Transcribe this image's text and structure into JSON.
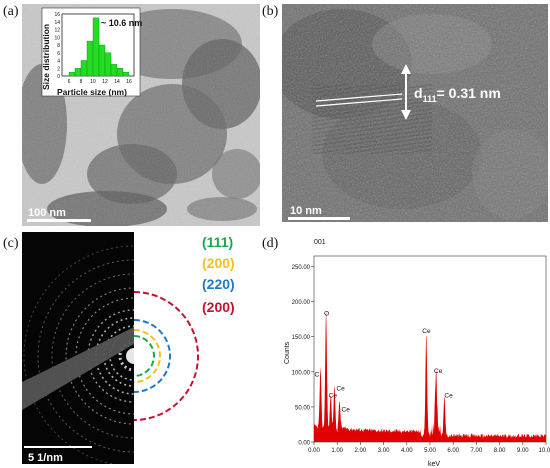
{
  "panels": {
    "a": {
      "label": "(a)",
      "scale_bar": "100 nm",
      "inset": {
        "annotation": "~ 10.6 nm",
        "ylabel": "Size distribution",
        "xlabel": "Particle size (nm)",
        "yticks": [
          "0",
          "2",
          "4",
          "6",
          "8",
          "10",
          "12",
          "14",
          "16"
        ],
        "xticks": [
          "6",
          "8",
          "10",
          "12",
          "14",
          "16"
        ],
        "bar_color": "#22dd22"
      }
    },
    "b": {
      "label": "(b)",
      "scale_bar": "10 nm",
      "d_symbol": "d",
      "d_sub": "111",
      "d_value": "= 0.31 nm"
    },
    "c": {
      "label": "(c)",
      "scale_bar": "5 1/nm",
      "rings": [
        {
          "text": "(111)",
          "color": "#19a84a"
        },
        {
          "text": "(200)",
          "color": "#f2c21b"
        },
        {
          "text": "(220)",
          "color": "#1f78c8"
        },
        {
          "text": "(200)",
          "color": "#c8102e"
        }
      ]
    },
    "d": {
      "label": "(d)",
      "header": "001",
      "fill_color": "#e00000"
    }
  },
  "chart_data": [
    {
      "type": "bar",
      "categories": [
        "6",
        "7",
        "8",
        "9",
        "10",
        "11",
        "12",
        "13",
        "14",
        "15"
      ],
      "values": [
        1,
        2,
        4,
        9,
        15,
        8,
        6,
        3,
        2,
        1
      ],
      "title": "",
      "xlabel": "Particle size (nm)",
      "ylabel": "Size distribution",
      "ylim": [
        0,
        16
      ],
      "annotation": "~ 10.6 nm"
    },
    {
      "type": "area",
      "xlabel": "keV",
      "ylabel": "Counts",
      "xlim": [
        0,
        10
      ],
      "ylim": [
        0,
        265
      ],
      "xticks": [
        "0.00",
        "1.00",
        "2.00",
        "3.00",
        "4.00",
        "5.00",
        "6.00",
        "7.00",
        "8.00",
        "9.00",
        "10.00"
      ],
      "yticks": [
        "0.00",
        "50.00",
        "100.00",
        "150.00",
        "200.00",
        "250.00"
      ],
      "peaks": [
        {
          "label": "C",
          "x": 0.28,
          "y": 85
        },
        {
          "label": "O",
          "x": 0.52,
          "y": 172
        },
        {
          "label": "Ce",
          "x": 0.88,
          "y": 65
        },
        {
          "label": "Ce",
          "x": 0.72,
          "y": 52
        },
        {
          "label": "Ce",
          "x": 1.1,
          "y": 38
        },
        {
          "label": "Ce",
          "x": 4.84,
          "y": 147
        },
        {
          "label": "Ce",
          "x": 5.26,
          "y": 90
        },
        {
          "label": "Ce",
          "x": 5.62,
          "y": 55
        }
      ]
    }
  ]
}
